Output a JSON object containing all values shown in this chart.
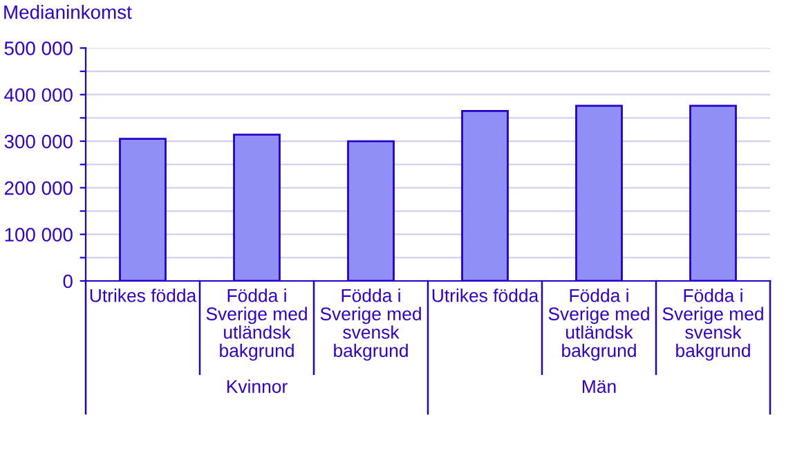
{
  "chart_data": {
    "type": "bar",
    "ylabel": "Medianinkomst",
    "categories": [
      "Utrikes födda",
      "Födda i\nSverige med\nutländsk\nbakgrund",
      "Födda i\nSverige med\nsvensk\nbakgrund",
      "Utrikes födda",
      "Födda i\nSverige med\nutländsk\nbakgrund",
      "Födda i\nSverige med\nsvensk\nbakgrund"
    ],
    "values": [
      305000,
      314000,
      300000,
      365000,
      376000,
      376000
    ],
    "color": "#8f8ff5",
    "annotations": [
      "Kvinnor",
      "Män"
    ],
    "ylim": [
      0,
      500000
    ],
    "yticks": [
      {
        "value": 0,
        "label": "0"
      },
      {
        "value": 50000,
        "label": null
      },
      {
        "value": 100000,
        "label": "100 000"
      },
      {
        "value": 150000,
        "label": null
      },
      {
        "value": 200000,
        "label": "200 000"
      },
      {
        "value": 250000,
        "label": null
      },
      {
        "value": 300000,
        "label": "300 000"
      },
      {
        "value": 350000,
        "label": null
      },
      {
        "value": 400000,
        "label": "400 000"
      },
      {
        "value": 450000,
        "label": null
      },
      {
        "value": 500000,
        "label": "500 000"
      }
    ],
    "grid": "y",
    "legend": false
  }
}
